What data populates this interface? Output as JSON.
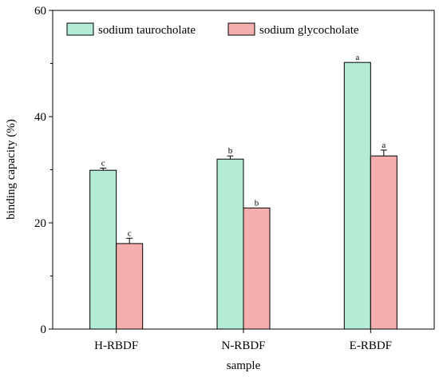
{
  "chart_data": {
    "type": "bar",
    "xlabel": "sample",
    "ylabel": "binding capacity (%)",
    "ylim": [
      0,
      60
    ],
    "yticks": [
      "0",
      "20",
      "40",
      "60"
    ],
    "categories": [
      "H-RBDF",
      "N-RBDF",
      "E-RBDF"
    ],
    "series": [
      {
        "name": "sodium taurocholate",
        "color": "#b3ebd4",
        "values": [
          29.9,
          32.0,
          50.2
        ],
        "errors": [
          0.4,
          0.6,
          0.0
        ],
        "labels": [
          "c",
          "b",
          "a"
        ]
      },
      {
        "name": "sodium glycocholate",
        "color": "#f5aeae",
        "values": [
          16.1,
          22.8,
          32.6
        ],
        "errors": [
          1.0,
          0.0,
          1.1
        ],
        "labels": [
          "c",
          "b",
          "a"
        ]
      }
    ],
    "legend": "top-left",
    "grid": false
  }
}
